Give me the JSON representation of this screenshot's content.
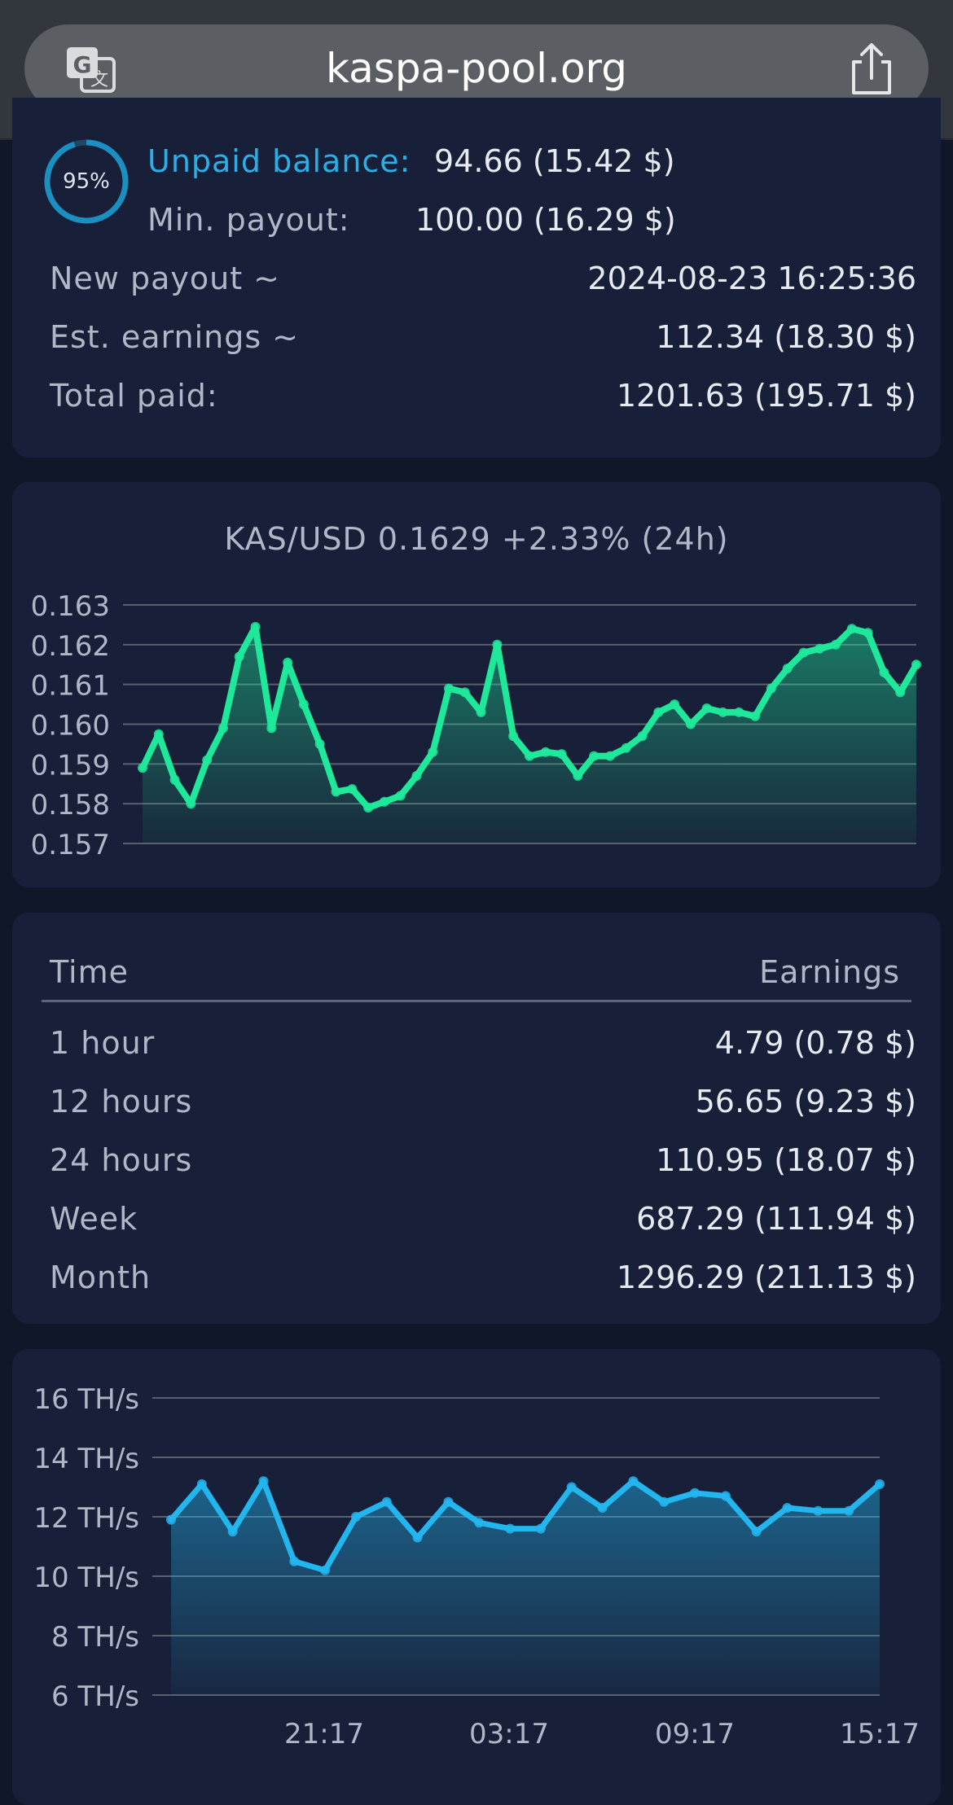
{
  "browser": {
    "url": "kaspa-pool.org"
  },
  "balance": {
    "progress_percent": 95,
    "progress_label": "95%",
    "unpaid_label": "Unpaid balance:",
    "unpaid_value": "94.66 (15.42 $)",
    "min_payout_label": "Min. payout:",
    "min_payout_value": "100.00 (16.29 $)",
    "new_payout_label": "New payout ~",
    "new_payout_value": "2024-08-23 16:25:36",
    "est_earnings_label": "Est. earnings ~",
    "est_earnings_value": "112.34 (18.30 $)",
    "total_paid_label": "Total paid:",
    "total_paid_value": "1201.63 (195.71 $)"
  },
  "earnings_table": {
    "headers": [
      "Time",
      "Earnings"
    ],
    "rows": [
      {
        "period": "1 hour",
        "value": "4.79 (0.78 $)"
      },
      {
        "period": "12 hours",
        "value": "56.65 (9.23 $)"
      },
      {
        "period": "24 hours",
        "value": "110.95 (18.07 $)"
      },
      {
        "period": "Week",
        "value": "687.29 (111.94 $)"
      },
      {
        "period": "Month",
        "value": "1296.29 (211.13 $)"
      }
    ]
  },
  "colors": {
    "price_line": "#1ee89a",
    "hash_line": "#22b5ee",
    "accent_text": "#2ab0e8"
  },
  "chart_data": [
    {
      "type": "area",
      "title": "KAS/USD 0.1629 +2.33% (24h)",
      "yticks": [
        "0.163",
        "0.162",
        "0.161",
        "0.160",
        "0.159",
        "0.158",
        "0.157"
      ],
      "ylim": [
        0.157,
        0.163
      ],
      "grid": true,
      "values": [
        0.1589,
        0.15975,
        0.1586,
        0.158,
        0.1591,
        0.1599,
        0.1617,
        0.16245,
        0.1599,
        0.16155,
        0.1605,
        0.1595,
        0.1583,
        0.15837,
        0.1579,
        0.15805,
        0.1582,
        0.1587,
        0.1593,
        0.1609,
        0.1608,
        0.1603,
        0.162,
        0.1597,
        0.1592,
        0.1593,
        0.15925,
        0.1587,
        0.1592,
        0.1592,
        0.1594,
        0.1597,
        0.1603,
        0.1605,
        0.16,
        0.1604,
        0.1603,
        0.1603,
        0.1602,
        0.1609,
        0.1614,
        0.1618,
        0.1619,
        0.162,
        0.1624,
        0.1623,
        0.1613,
        0.1608,
        0.1615
      ]
    },
    {
      "type": "area",
      "yticks": [
        "16 TH/s",
        "14 TH/s",
        "12 TH/s",
        "10 TH/s",
        "8 TH/s",
        "6 TH/s"
      ],
      "ylim": [
        6,
        16
      ],
      "xticks": [
        "21:17",
        "03:17",
        "09:17",
        "15:17"
      ],
      "grid": true,
      "values": [
        11.9,
        13.1,
        11.5,
        13.2,
        10.5,
        10.2,
        12.0,
        12.5,
        11.3,
        12.5,
        11.8,
        11.6,
        11.6,
        13.0,
        12.3,
        13.2,
        12.5,
        12.8,
        12.7,
        11.5,
        12.3,
        12.2,
        12.2,
        13.1
      ]
    }
  ]
}
